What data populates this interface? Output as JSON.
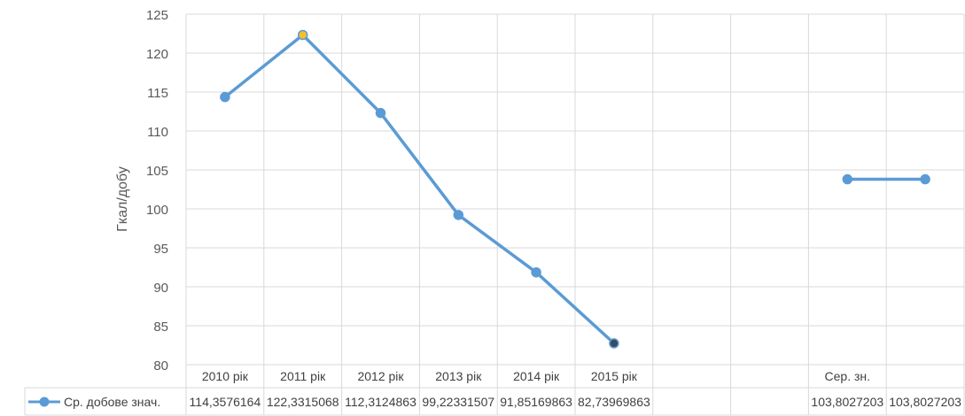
{
  "chart_data": {
    "type": "line",
    "ylabel": "Гкал/добу",
    "ylim": [
      80,
      125
    ],
    "yticks": [
      80,
      85,
      90,
      95,
      100,
      105,
      110,
      115,
      120,
      125
    ],
    "grid": true,
    "categories": [
      "2010 рік",
      "2011 рік",
      "2012 рік",
      "2013 рік",
      "2014 рік",
      "2015 рік",
      "",
      "",
      "Сер. зн.",
      ""
    ],
    "series": [
      {
        "name": "Ср. добове знач.",
        "color": "#5b9bd5",
        "values": [
          114.3576164,
          122.3315068,
          112.3124863,
          99.223315,
          91.8516986,
          82.7396986,
          null,
          null,
          103.8027203,
          103.8027203
        ],
        "table_values": [
          "114,3576164",
          "122,3315068",
          "112,3124863",
          "99,22331507",
          "91,85169863",
          "82,73969863",
          "",
          "",
          "103,8027203",
          "103,8027203"
        ]
      }
    ],
    "point_colors": {
      "1": "#f5c02a",
      "5": "#3b4a5c"
    },
    "legend_position": "data-table"
  }
}
